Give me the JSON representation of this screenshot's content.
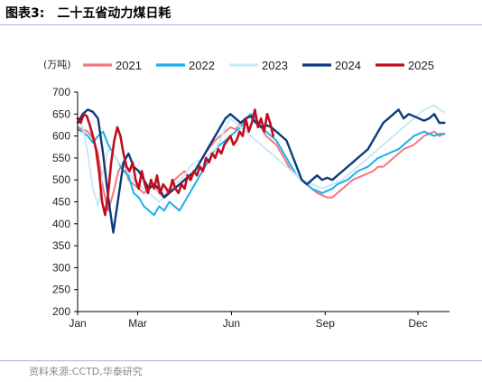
{
  "figure": {
    "title_prefix": "图表3:",
    "title": "二十五省动力煤日耗",
    "source": "资料来源:CCTD,华泰研究"
  },
  "chart_data": {
    "type": "line",
    "ylabel": "(万吨)",
    "ylim": [
      200,
      700
    ],
    "yticks": [
      200,
      250,
      300,
      350,
      400,
      450,
      500,
      550,
      600,
      650,
      700
    ],
    "xlim": [
      0,
      365
    ],
    "xticks": [
      {
        "value": 0,
        "label": "Jan"
      },
      {
        "value": 59,
        "label": "Mar"
      },
      {
        "value": 151,
        "label": "Jun"
      },
      {
        "value": 243,
        "label": "Sep"
      },
      {
        "value": 334,
        "label": "Dec"
      }
    ],
    "grid": false,
    "legend_position": "top",
    "series": [
      {
        "name": "2021",
        "color": "#f4777b",
        "width": 2,
        "x": [
          0,
          5,
          10,
          15,
          20,
          25,
          30,
          35,
          40,
          45,
          50,
          55,
          60,
          65,
          70,
          75,
          80,
          85,
          90,
          95,
          100,
          105,
          110,
          115,
          120,
          125,
          130,
          135,
          140,
          145,
          150,
          155,
          160,
          165,
          170,
          175,
          180,
          185,
          190,
          195,
          200,
          205,
          210,
          215,
          220,
          225,
          230,
          235,
          240,
          245,
          250,
          255,
          260,
          265,
          270,
          275,
          280,
          285,
          290,
          295,
          300,
          305,
          310,
          315,
          320,
          325,
          330,
          335,
          340,
          345,
          350,
          355,
          360
        ],
        "values": [
          620,
          615,
          610,
          595,
          560,
          480,
          430,
          470,
          520,
          540,
          500,
          490,
          480,
          470,
          480,
          490,
          470,
          460,
          480,
          500,
          510,
          520,
          500,
          520,
          540,
          560,
          575,
          590,
          600,
          610,
          620,
          615,
          630,
          640,
          650,
          640,
          620,
          600,
          590,
          580,
          560,
          540,
          520,
          510,
          500,
          490,
          480,
          470,
          465,
          460,
          460,
          470,
          480,
          490,
          500,
          505,
          510,
          515,
          520,
          530,
          530,
          540,
          550,
          560,
          570,
          575,
          580,
          590,
          600,
          605,
          610,
          600,
          605
        ]
      },
      {
        "name": "2022",
        "color": "#1bb0e8",
        "width": 2,
        "x": [
          0,
          5,
          10,
          15,
          20,
          25,
          30,
          35,
          40,
          45,
          50,
          55,
          60,
          65,
          70,
          75,
          80,
          85,
          90,
          95,
          100,
          105,
          110,
          115,
          120,
          125,
          130,
          135,
          140,
          145,
          150,
          155,
          160,
          165,
          170,
          175,
          180,
          185,
          190,
          195,
          200,
          205,
          210,
          215,
          220,
          225,
          230,
          235,
          240,
          245,
          250,
          255,
          260,
          265,
          270,
          275,
          280,
          285,
          290,
          295,
          300,
          305,
          310,
          315,
          320,
          325,
          330,
          335,
          340,
          345,
          350,
          355,
          360
        ],
        "values": [
          615,
          610,
          600,
          585,
          600,
          610,
          580,
          560,
          540,
          520,
          510,
          470,
          460,
          440,
          430,
          420,
          440,
          430,
          450,
          440,
          430,
          450,
          470,
          490,
          510,
          530,
          550,
          570,
          580,
          590,
          600,
          610,
          620,
          640,
          650,
          640,
          620,
          610,
          600,
          590,
          570,
          550,
          530,
          510,
          500,
          490,
          480,
          475,
          470,
          475,
          480,
          490,
          495,
          500,
          510,
          520,
          525,
          530,
          540,
          550,
          555,
          560,
          565,
          570,
          580,
          590,
          600,
          605,
          610,
          605,
          600,
          605,
          605
        ]
      },
      {
        "name": "2023",
        "color": "#c9e9f6",
        "width": 2,
        "x": [
          0,
          5,
          10,
          15,
          20,
          25,
          30,
          35,
          40,
          45,
          50,
          55,
          60,
          65,
          70,
          75,
          80,
          85,
          90,
          95,
          100,
          105,
          110,
          115,
          120,
          125,
          130,
          135,
          140,
          145,
          150,
          155,
          160,
          165,
          170,
          175,
          180,
          185,
          190,
          195,
          200,
          205,
          210,
          215,
          220,
          225,
          230,
          235,
          240,
          245,
          250,
          255,
          260,
          265,
          270,
          275,
          280,
          285,
          290,
          295,
          300,
          305,
          310,
          315,
          320,
          325,
          330,
          335,
          340,
          345,
          350,
          355,
          360
        ],
        "values": [
          640,
          620,
          560,
          480,
          440,
          520,
          570,
          560,
          540,
          530,
          520,
          500,
          490,
          480,
          470,
          460,
          450,
          460,
          470,
          490,
          500,
          510,
          530,
          540,
          545,
          550,
          560,
          570,
          590,
          620,
          640,
          630,
          620,
          610,
          600,
          590,
          580,
          570,
          560,
          550,
          540,
          530,
          520,
          510,
          500,
          495,
          490,
          485,
          480,
          485,
          490,
          495,
          500,
          510,
          520,
          530,
          540,
          550,
          560,
          570,
          580,
          590,
          600,
          610,
          620,
          630,
          640,
          650,
          660,
          665,
          670,
          660,
          655
        ]
      },
      {
        "name": "2024",
        "color": "#0d3a7a",
        "width": 2.4,
        "x": [
          0,
          5,
          10,
          15,
          20,
          25,
          30,
          35,
          40,
          45,
          50,
          55,
          60,
          65,
          70,
          75,
          80,
          85,
          90,
          95,
          100,
          105,
          110,
          115,
          120,
          125,
          130,
          135,
          140,
          145,
          150,
          155,
          160,
          165,
          170,
          175,
          180,
          185,
          190,
          195,
          200,
          205,
          210,
          215,
          220,
          225,
          230,
          235,
          240,
          245,
          250,
          255,
          260,
          265,
          270,
          275,
          280,
          285,
          290,
          295,
          300,
          305,
          310,
          315,
          320,
          325,
          330,
          335,
          340,
          345,
          350,
          355,
          360
        ],
        "values": [
          630,
          650,
          660,
          655,
          640,
          560,
          460,
          380,
          460,
          540,
          560,
          530,
          520,
          500,
          480,
          490,
          480,
          460,
          470,
          480,
          490,
          500,
          510,
          520,
          540,
          560,
          580,
          600,
          620,
          640,
          650,
          640,
          630,
          640,
          645,
          630,
          620,
          625,
          620,
          610,
          600,
          590,
          560,
          530,
          500,
          490,
          500,
          510,
          500,
          505,
          500,
          510,
          520,
          530,
          540,
          550,
          560,
          570,
          590,
          610,
          630,
          640,
          650,
          660,
          640,
          650,
          645,
          640,
          635,
          640,
          650,
          630,
          630
        ]
      },
      {
        "name": "2025",
        "color": "#c00d1e",
        "width": 2.6,
        "x": [
          0,
          3,
          6,
          9,
          12,
          15,
          18,
          21,
          24,
          27,
          30,
          33,
          36,
          39,
          42,
          45,
          48,
          51,
          54,
          57,
          60,
          63,
          66,
          69,
          72,
          75,
          78,
          81,
          84,
          87,
          90,
          93,
          96,
          99,
          102,
          105,
          108,
          111,
          114,
          117,
          120,
          123,
          126,
          129,
          132,
          135,
          138,
          141,
          144,
          147,
          150,
          153,
          156,
          159,
          162,
          165,
          168,
          171,
          174,
          177,
          180,
          183,
          186,
          189,
          192
        ],
        "values": [
          640,
          630,
          650,
          645,
          625,
          600,
          570,
          520,
          450,
          420,
          470,
          540,
          590,
          620,
          600,
          560,
          530,
          520,
          540,
          500,
          480,
          520,
          490,
          470,
          500,
          480,
          510,
          470,
          490,
          480,
          470,
          500,
          480,
          470,
          490,
          480,
          510,
          500,
          520,
          510,
          530,
          520,
          550,
          540,
          560,
          550,
          570,
          560,
          580,
          590,
          600,
          580,
          590,
          610,
          600,
          640,
          610,
          630,
          660,
          620,
          640,
          610,
          650,
          630,
          600
        ]
      }
    ]
  }
}
